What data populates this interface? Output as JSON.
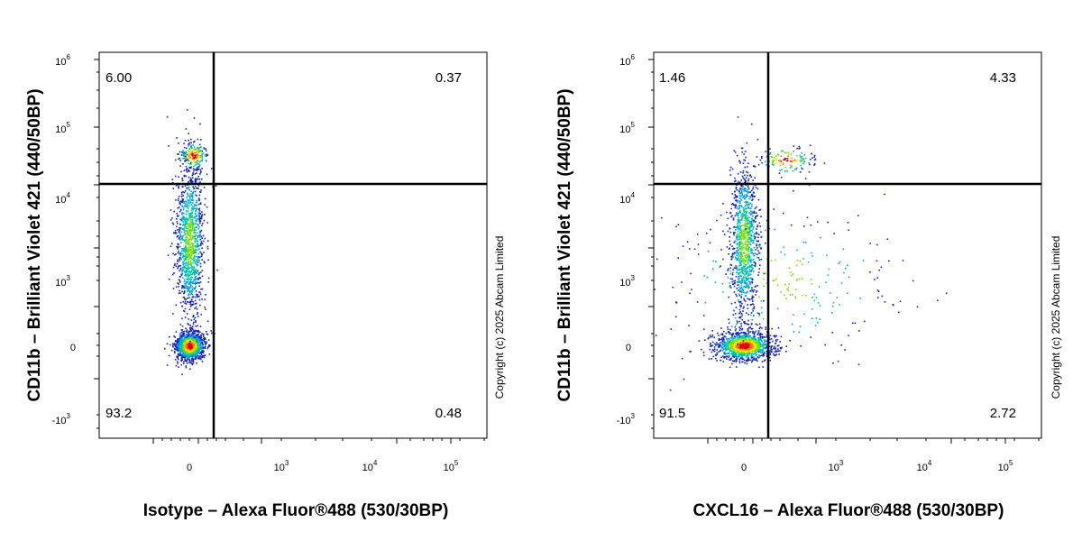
{
  "copyright": "Copyright (c) 2025 Abcam Limited",
  "chart_data": [
    {
      "type": "scatter",
      "xlabel": "Isotype – Alexa Fluor®488 (530/30BP)",
      "ylabel": "CD11b – Brilliant Violet 421  (440/50BP)",
      "xscale": "biexponential",
      "yscale": "biexponential",
      "x_ticks": [
        {
          "base": "0",
          "exp": ""
        },
        {
          "base": "10",
          "exp": "3"
        },
        {
          "base": "10",
          "exp": "4"
        },
        {
          "base": "10",
          "exp": "5"
        }
      ],
      "y_ticks": [
        {
          "base": "-10",
          "exp": "3"
        },
        {
          "base": "0",
          "exp": ""
        },
        {
          "base": "10",
          "exp": "3"
        },
        {
          "base": "10",
          "exp": "4"
        },
        {
          "base": "10",
          "exp": "5"
        },
        {
          "base": "10",
          "exp": "6"
        }
      ],
      "quadrant_gate": {
        "x": 220,
        "y": 15000
      },
      "quadrants": {
        "upper_left": "6.00",
        "upper_right": "0.37",
        "lower_left": "93.2",
        "lower_right": "0.48"
      },
      "populations": [
        {
          "x": 0,
          "y": 0,
          "spread_x": "low",
          "spread_y": "low",
          "weight": 0.45
        },
        {
          "x": 0,
          "y": 3000,
          "spread_x": "low",
          "spread_y": "high",
          "weight": 0.45
        },
        {
          "x": 40,
          "y": 40000,
          "spread_x": "low",
          "spread_y": "low",
          "weight": 0.07
        }
      ]
    },
    {
      "type": "scatter",
      "xlabel": "CXCL16 – Alexa Fluor®488 (530/30BP)",
      "ylabel": "CD11b – Brilliant Violet 421  (440/50BP)",
      "xscale": "biexponential",
      "yscale": "biexponential",
      "x_ticks": [
        {
          "base": "0",
          "exp": ""
        },
        {
          "base": "10",
          "exp": "3"
        },
        {
          "base": "10",
          "exp": "4"
        },
        {
          "base": "10",
          "exp": "5"
        }
      ],
      "y_ticks": [
        {
          "base": "-10",
          "exp": "3"
        },
        {
          "base": "0",
          "exp": ""
        },
        {
          "base": "10",
          "exp": "3"
        },
        {
          "base": "10",
          "exp": "4"
        },
        {
          "base": "10",
          "exp": "5"
        },
        {
          "base": "10",
          "exp": "6"
        }
      ],
      "quadrant_gate": {
        "x": 220,
        "y": 15000
      },
      "quadrants": {
        "upper_left": "1.46",
        "upper_right": "4.33",
        "lower_left": "91.5",
        "lower_right": "2.72"
      },
      "populations": [
        {
          "x": 0,
          "y": 0,
          "spread_x": "medium",
          "spread_y": "low",
          "weight": 0.45
        },
        {
          "x": 0,
          "y": 3000,
          "spread_x": "low",
          "spread_y": "high",
          "weight": 0.4
        },
        {
          "x": 450,
          "y": 35000,
          "spread_x": "medium",
          "spread_y": "low",
          "weight": 0.05
        },
        {
          "x": 400,
          "y": 1000,
          "spread_x": "high",
          "spread_y": "high",
          "weight": 0.1
        }
      ]
    }
  ]
}
